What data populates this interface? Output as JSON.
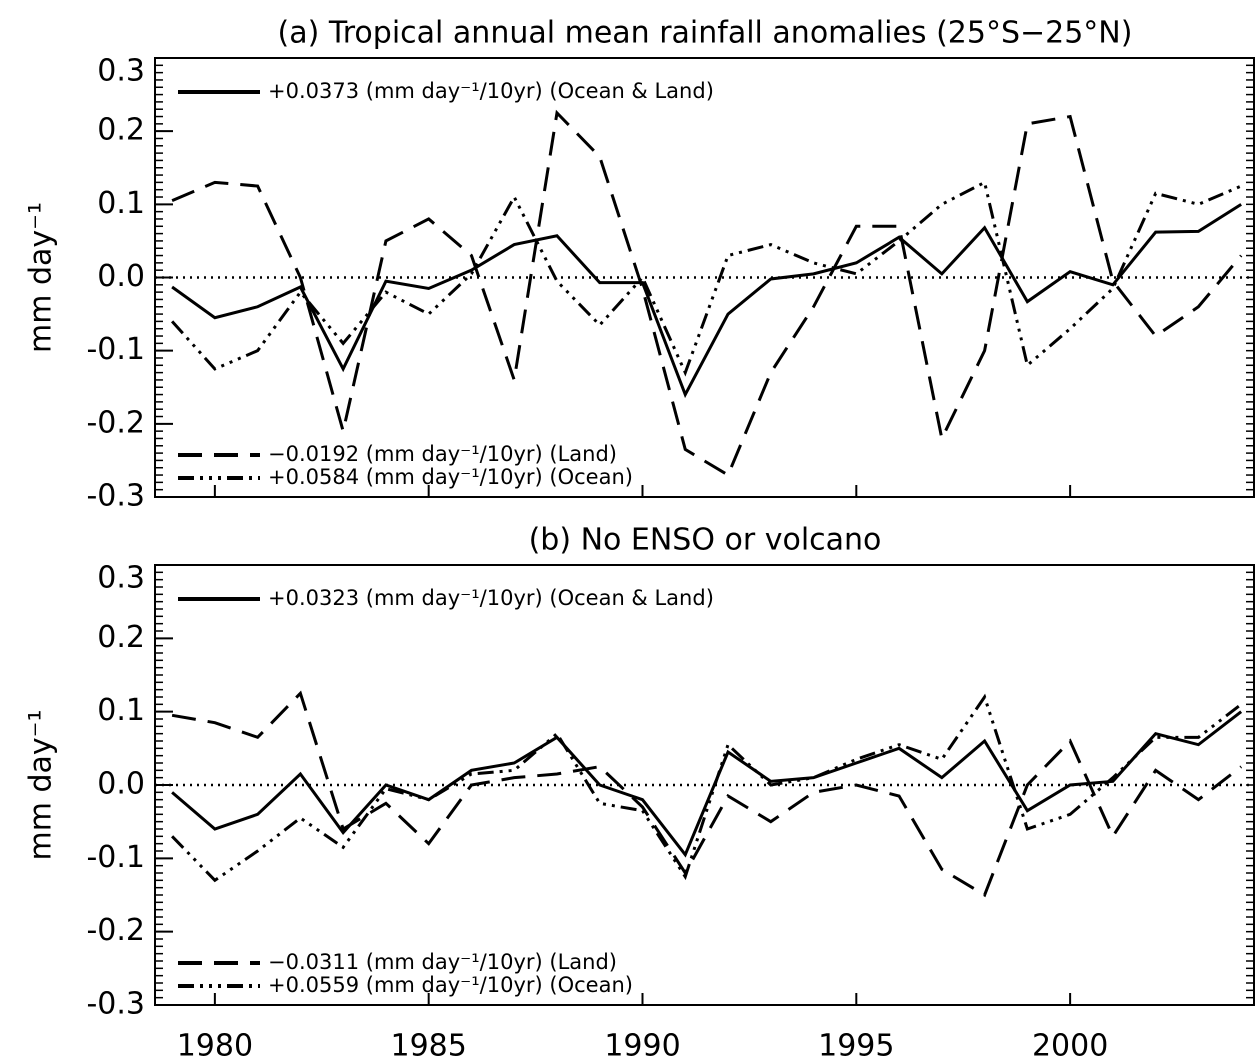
{
  "chart_data": [
    {
      "type": "line",
      "title": "(a) Tropical annual mean rainfall anomalies (25°S−25°N)",
      "ylabel": "mm day⁻¹",
      "x": [
        1979,
        1980,
        1981,
        1982,
        1983,
        1984,
        1985,
        1986,
        1987,
        1988,
        1989,
        1990,
        1991,
        1992,
        1993,
        1994,
        1995,
        1996,
        1997,
        1998,
        1999,
        2000,
        2001,
        2002,
        2003,
        2004
      ],
      "xlim": [
        1978.6,
        2004.3
      ],
      "xticks": [
        1980,
        1985,
        1990,
        1995,
        2000
      ],
      "ylim": [
        -0.3,
        0.3
      ],
      "yticks": [
        -0.3,
        -0.2,
        -0.1,
        {
          "value": 0,
          "label": "0.0"
        },
        0.1,
        0.2,
        0.3
      ],
      "series": [
        {
          "name": "+0.0373 (mm day⁻¹/10yr) (Ocean & Land)",
          "color": "#000000",
          "dash": "solid",
          "legend_loc": "upper left",
          "values": [
            -0.013,
            -0.055,
            -0.04,
            -0.013,
            -0.125,
            -0.005,
            -0.015,
            0.01,
            0.045,
            0.057,
            -0.007,
            -0.007,
            -0.16,
            -0.05,
            -0.002,
            0.005,
            0.02,
            0.055,
            0.005,
            0.068,
            -0.033,
            0.008,
            -0.01,
            0.062,
            0.063,
            0.1
          ]
        },
        {
          "name": "−0.0192 (mm day⁻¹/10yr) (Land)",
          "color": "#000000",
          "dash": "dashed",
          "legend_loc": "lower left",
          "values": [
            0.105,
            0.13,
            0.125,
            0.0,
            -0.21,
            0.05,
            0.08,
            0.03,
            -0.14,
            0.225,
            0.165,
            -0.015,
            -0.235,
            -0.27,
            -0.13,
            -0.04,
            0.07,
            0.07,
            -0.22,
            -0.1,
            0.21,
            0.22,
            -0.005,
            -0.08,
            -0.04,
            0.03
          ]
        },
        {
          "name": "+0.0584 (mm day⁻¹/10yr) (Ocean)",
          "color": "#000000",
          "dash": "dashdotdotdot",
          "legend_loc": "lower left",
          "values": [
            -0.06,
            -0.125,
            -0.1,
            -0.02,
            -0.09,
            -0.02,
            -0.05,
            0.005,
            0.11,
            -0.005,
            -0.065,
            0.0,
            -0.13,
            0.03,
            0.045,
            0.02,
            0.005,
            0.05,
            0.1,
            0.13,
            -0.12,
            -0.07,
            -0.015,
            0.115,
            0.1,
            0.125
          ]
        }
      ]
    },
    {
      "type": "line",
      "title": "(b) No ENSO or volcano",
      "ylabel": "mm day⁻¹",
      "x": [
        1979,
        1980,
        1981,
        1982,
        1983,
        1984,
        1985,
        1986,
        1987,
        1988,
        1989,
        1990,
        1991,
        1992,
        1993,
        1994,
        1995,
        1996,
        1997,
        1998,
        1999,
        2000,
        2001,
        2002,
        2003,
        2004
      ],
      "xlim": [
        1978.6,
        2004.3
      ],
      "xticks": [
        1980,
        1985,
        1990,
        1995,
        2000
      ],
      "ylim": [
        -0.3,
        0.3
      ],
      "yticks": [
        -0.3,
        -0.2,
        -0.1,
        {
          "value": 0,
          "label": "0.0"
        },
        0.1,
        0.2,
        0.3
      ],
      "series": [
        {
          "name": "+0.0323 (mm day⁻¹/10yr) (Ocean & Land)",
          "color": "#000000",
          "dash": "solid",
          "legend_loc": "upper left",
          "values": [
            -0.01,
            -0.06,
            -0.04,
            0.015,
            -0.065,
            0.0,
            -0.02,
            0.02,
            0.03,
            0.065,
            0.0,
            -0.02,
            -0.095,
            0.045,
            0.005,
            0.01,
            0.03,
            0.05,
            0.01,
            0.06,
            -0.035,
            0.0,
            0.005,
            0.07,
            0.055,
            0.1
          ]
        },
        {
          "name": "−0.0311 (mm day⁻¹/10yr) (Land)",
          "color": "#000000",
          "dash": "dashed",
          "legend_loc": "lower left",
          "values": [
            0.095,
            0.085,
            0.065,
            0.125,
            -0.06,
            -0.025,
            -0.08,
            0.0,
            0.01,
            0.015,
            0.025,
            -0.03,
            -0.12,
            -0.015,
            -0.05,
            -0.01,
            0.0,
            -0.015,
            -0.115,
            -0.15,
            0.0,
            0.06,
            -0.07,
            0.02,
            -0.02,
            0.025
          ]
        },
        {
          "name": "+0.0559 (mm day⁻¹/10yr) (Ocean)",
          "color": "#000000",
          "dash": "dashdotdotdot",
          "legend_loc": "lower left",
          "values": [
            -0.07,
            -0.13,
            -0.09,
            -0.045,
            -0.085,
            -0.005,
            -0.02,
            0.015,
            0.02,
            0.07,
            -0.025,
            -0.035,
            -0.125,
            0.055,
            0.0,
            0.01,
            0.035,
            0.055,
            0.035,
            0.12,
            -0.06,
            -0.04,
            0.01,
            0.065,
            0.065,
            0.11
          ]
        }
      ]
    }
  ]
}
